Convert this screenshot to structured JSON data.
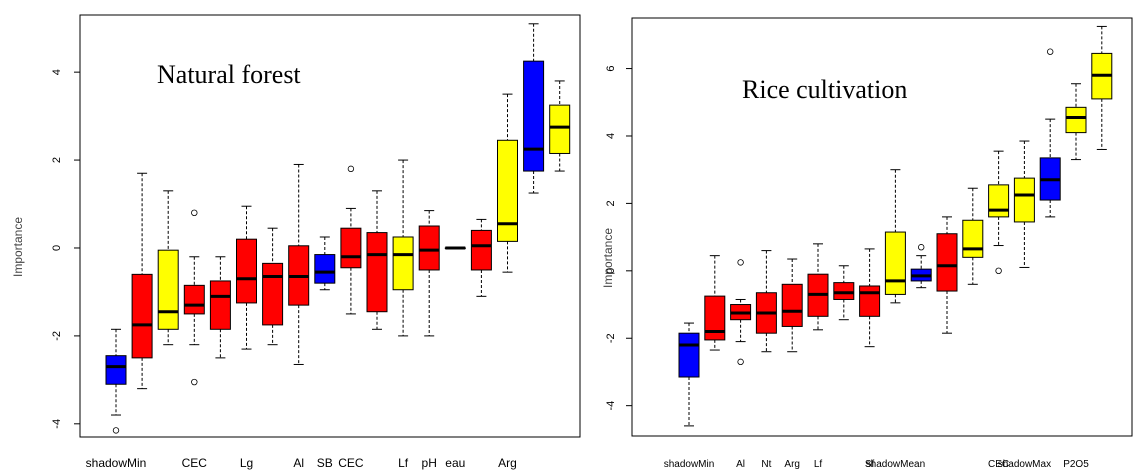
{
  "chart_data": [
    {
      "type": "boxplot",
      "annotation": "Natural forest",
      "ylabel": "Importance",
      "ylim": [
        -4.3,
        5.3
      ],
      "yticks": [
        -4,
        -2,
        0,
        2,
        4
      ],
      "xtick_labels": [
        {
          "index": 0,
          "label": "shadowMin"
        },
        {
          "index": 3,
          "label": "CEC"
        },
        {
          "index": 5,
          "label": "Lg"
        },
        {
          "index": 7,
          "label": "Al"
        },
        {
          "index": 8,
          "label": "SB"
        },
        {
          "index": 9,
          "label": "CEC"
        },
        {
          "index": 11,
          "label": "Lf"
        },
        {
          "index": 12,
          "label": "pH"
        },
        {
          "index": 13,
          "label": "eau"
        },
        {
          "index": 15,
          "label": "Arg"
        }
      ],
      "boxes": [
        {
          "color": "#0000ff",
          "min": -3.8,
          "q1": -3.1,
          "median": -2.7,
          "q3": -2.45,
          "max": -1.85,
          "outliers": [
            -4.15
          ]
        },
        {
          "color": "#ff0000",
          "min": -3.2,
          "q1": -2.5,
          "median": -1.75,
          "q3": -0.6,
          "max": 1.7,
          "outliers": []
        },
        {
          "color": "#ffff00",
          "min": -2.2,
          "q1": -1.85,
          "median": -1.45,
          "q3": -0.05,
          "max": 1.3,
          "outliers": []
        },
        {
          "color": "#ff0000",
          "min": -2.2,
          "q1": -1.5,
          "median": -1.3,
          "q3": -0.85,
          "max": -0.2,
          "outliers": [
            0.8,
            -3.05
          ]
        },
        {
          "color": "#ff0000",
          "min": -2.5,
          "q1": -1.85,
          "median": -1.1,
          "q3": -0.75,
          "max": -0.2,
          "outliers": []
        },
        {
          "color": "#ff0000",
          "min": -2.3,
          "q1": -1.25,
          "median": -0.7,
          "q3": 0.2,
          "max": 0.95,
          "outliers": []
        },
        {
          "color": "#ff0000",
          "min": -2.2,
          "q1": -1.75,
          "median": -0.65,
          "q3": -0.35,
          "max": 0.45,
          "outliers": []
        },
        {
          "color": "#ff0000",
          "min": -2.65,
          "q1": -1.3,
          "median": -0.65,
          "q3": 0.05,
          "max": 1.9,
          "outliers": []
        },
        {
          "color": "#0000ff",
          "min": -0.95,
          "q1": -0.8,
          "median": -0.55,
          "q3": -0.15,
          "max": 0.25,
          "outliers": []
        },
        {
          "color": "#ff0000",
          "min": -1.5,
          "q1": -0.45,
          "median": -0.2,
          "q3": 0.45,
          "max": 0.9,
          "outliers": [
            1.8
          ]
        },
        {
          "color": "#ff0000",
          "min": -1.85,
          "q1": -1.45,
          "median": -0.15,
          "q3": 0.35,
          "max": 1.3,
          "outliers": []
        },
        {
          "color": "#ffff00",
          "min": -2.0,
          "q1": -0.95,
          "median": -0.15,
          "q3": 0.25,
          "max": 2.0,
          "outliers": []
        },
        {
          "color": "#ff0000",
          "min": -2.0,
          "q1": -0.5,
          "median": -0.05,
          "q3": 0.5,
          "max": 0.85,
          "outliers": []
        },
        {
          "color": "#ff0000",
          "min": 0.0,
          "q1": 0.0,
          "median": 0.0,
          "q3": 0.0,
          "max": 0.0,
          "outliers": []
        },
        {
          "color": "#ff0000",
          "min": -1.1,
          "q1": -0.5,
          "median": 0.05,
          "q3": 0.4,
          "max": 0.65,
          "outliers": []
        },
        {
          "color": "#ffff00",
          "min": -0.55,
          "q1": 0.15,
          "median": 0.55,
          "q3": 2.45,
          "max": 3.5,
          "outliers": []
        },
        {
          "color": "#0000ff",
          "min": 1.25,
          "q1": 1.75,
          "median": 2.25,
          "q3": 4.25,
          "max": 5.1,
          "outliers": []
        },
        {
          "color": "#ffff00",
          "min": 1.75,
          "q1": 2.15,
          "median": 2.75,
          "q3": 3.25,
          "max": 3.8,
          "outliers": []
        }
      ]
    },
    {
      "type": "boxplot",
      "annotation": "Rice cultivation",
      "ylabel": "Importance",
      "ylim": [
        -4.9,
        7.5
      ],
      "yticks": [
        -4,
        -2,
        0,
        2,
        4,
        6
      ],
      "xtick_labels": [
        {
          "index": 0,
          "label": "shadowMin"
        },
        {
          "index": 2,
          "label": "Al"
        },
        {
          "index": 3,
          "label": "Nt"
        },
        {
          "index": 4,
          "label": "Arg"
        },
        {
          "index": 5,
          "label": "Lf"
        },
        {
          "index": 7,
          "label": "Sf"
        },
        {
          "index": 8,
          "label": "shadowMean"
        },
        {
          "index": 12,
          "label": "CEC"
        },
        {
          "index": 13,
          "label": "shadowMax"
        },
        {
          "index": 15,
          "label": "P2O5"
        }
      ],
      "boxes": [
        {
          "color": "#0000ff",
          "min": -4.6,
          "q1": -3.15,
          "median": -2.2,
          "q3": -1.85,
          "max": -1.55,
          "outliers": []
        },
        {
          "color": "#ff0000",
          "min": -2.35,
          "q1": -2.05,
          "median": -1.8,
          "q3": -0.75,
          "max": 0.45,
          "outliers": []
        },
        {
          "color": "#ff0000",
          "min": -2.1,
          "q1": -1.45,
          "median": -1.25,
          "q3": -1.0,
          "max": -0.85,
          "outliers": [
            0.25,
            -2.7
          ]
        },
        {
          "color": "#ff0000",
          "min": -2.4,
          "q1": -1.85,
          "median": -1.25,
          "q3": -0.65,
          "max": 0.6,
          "outliers": []
        },
        {
          "color": "#ff0000",
          "min": -2.4,
          "q1": -1.65,
          "median": -1.2,
          "q3": -0.4,
          "max": 0.35,
          "outliers": []
        },
        {
          "color": "#ff0000",
          "min": -1.75,
          "q1": -1.35,
          "median": -0.7,
          "q3": -0.1,
          "max": 0.8,
          "outliers": []
        },
        {
          "color": "#ff0000",
          "min": -1.45,
          "q1": -0.85,
          "median": -0.65,
          "q3": -0.35,
          "max": 0.15,
          "outliers": []
        },
        {
          "color": "#ff0000",
          "min": -2.25,
          "q1": -1.35,
          "median": -0.65,
          "q3": -0.45,
          "max": 0.65,
          "outliers": []
        },
        {
          "color": "#ffff00",
          "min": -0.95,
          "q1": -0.7,
          "median": -0.3,
          "q3": 1.15,
          "max": 3.0,
          "outliers": []
        },
        {
          "color": "#0000ff",
          "min": -0.5,
          "q1": -0.3,
          "median": -0.15,
          "q3": 0.05,
          "max": 0.45,
          "outliers": [
            0.7
          ]
        },
        {
          "color": "#ff0000",
          "min": -1.85,
          "q1": -0.6,
          "median": 0.15,
          "q3": 1.1,
          "max": 1.6,
          "outliers": []
        },
        {
          "color": "#ffff00",
          "min": -0.4,
          "q1": 0.4,
          "median": 0.65,
          "q3": 1.5,
          "max": 2.45,
          "outliers": []
        },
        {
          "color": "#ffff00",
          "min": 0.75,
          "q1": 1.6,
          "median": 1.8,
          "q3": 2.55,
          "max": 3.55,
          "outliers": [
            0.0
          ]
        },
        {
          "color": "#ffff00",
          "min": 0.1,
          "q1": 1.45,
          "median": 2.25,
          "q3": 2.75,
          "max": 3.85,
          "outliers": []
        },
        {
          "color": "#0000ff",
          "min": 1.6,
          "q1": 2.1,
          "median": 2.7,
          "q3": 3.35,
          "max": 4.5,
          "outliers": [
            6.5
          ]
        },
        {
          "color": "#ffff00",
          "min": 3.3,
          "q1": 4.1,
          "median": 4.55,
          "q3": 4.85,
          "max": 5.55,
          "outliers": []
        },
        {
          "color": "#ffff00",
          "min": 3.6,
          "q1": 5.1,
          "median": 5.8,
          "q3": 6.45,
          "max": 7.25,
          "outliers": []
        }
      ]
    }
  ]
}
